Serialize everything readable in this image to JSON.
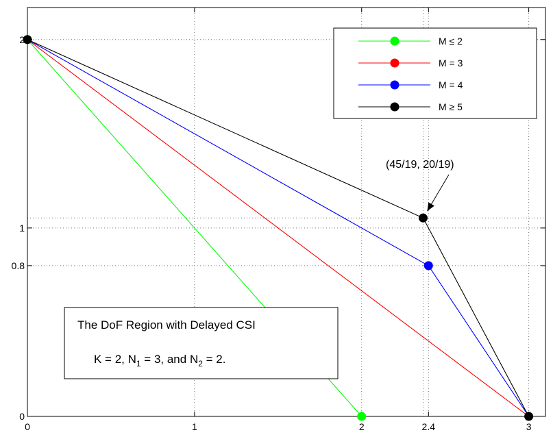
{
  "chart_data": {
    "type": "line",
    "title": "",
    "xlabel": "",
    "ylabel": "",
    "xlim": [
      0,
      3.1
    ],
    "ylim": [
      0,
      2.17
    ],
    "grid": true,
    "x_ticks": [
      {
        "value": 0,
        "label": "0"
      },
      {
        "value": 1,
        "label": "1"
      },
      {
        "value": 2,
        "label": "2"
      },
      {
        "value": 2.4,
        "label": "2.4"
      },
      {
        "value": 3,
        "label": "3"
      }
    ],
    "y_ticks": [
      {
        "value": 0,
        "label": "0"
      },
      {
        "value": 0.8,
        "label": "0.8"
      },
      {
        "value": 1,
        "label": "1"
      },
      {
        "value": 2,
        "label": "2"
      }
    ],
    "extra_gridlines": {
      "x": [
        2.368
      ],
      "y": [
        1.053
      ]
    },
    "legend_position": "top-right",
    "series": [
      {
        "name": "M ≤ 2",
        "color": "#00ff00",
        "points": [
          [
            0,
            2
          ],
          [
            2,
            0
          ]
        ],
        "markers": [
          [
            2,
            0
          ]
        ]
      },
      {
        "name": "M = 3",
        "color": "#ff0000",
        "points": [
          [
            0,
            2
          ],
          [
            3,
            0
          ]
        ],
        "markers": []
      },
      {
        "name": "M = 4",
        "color": "#0000ff",
        "points": [
          [
            0,
            2
          ],
          [
            2.4,
            0.8
          ],
          [
            3,
            0
          ]
        ],
        "markers": [
          [
            2.4,
            0.8
          ]
        ]
      },
      {
        "name": "M ≥ 5",
        "color": "#000000",
        "points": [
          [
            0,
            2
          ],
          [
            2.368,
            1.053
          ],
          [
            3,
            0
          ]
        ],
        "markers": [
          [
            2.368,
            1.053
          ]
        ]
      }
    ],
    "shared_markers": [
      [
        0,
        2
      ],
      [
        3,
        0
      ]
    ],
    "annotation": {
      "text": "(45/19, 20/19)",
      "target": [
        2.368,
        1.053
      ]
    },
    "textbox": {
      "line1": "The DoF Region with Delayed CSI",
      "line2_parts": [
        "K = 2,  N",
        "1",
        " = 3, and N",
        "2",
        " = 2."
      ]
    }
  }
}
